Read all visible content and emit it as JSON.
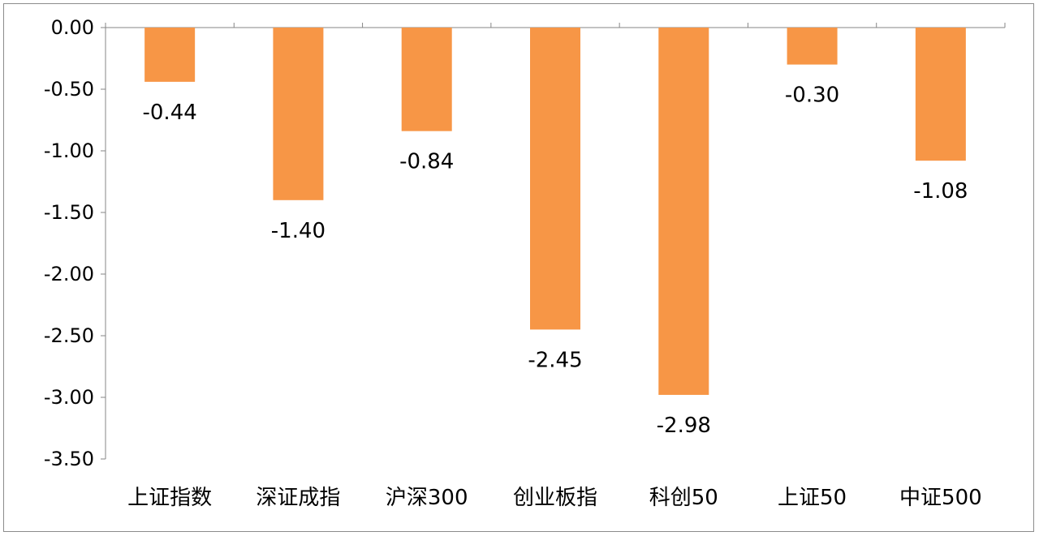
{
  "chart_data": {
    "type": "bar",
    "categories": [
      "上证指数",
      "深证成指",
      "沪深300",
      "创业板指",
      "科创50",
      "上证50",
      "中证500"
    ],
    "values": [
      -0.44,
      -1.4,
      -0.84,
      -2.45,
      -2.98,
      -0.3,
      -1.08
    ],
    "value_labels": [
      "-0.44",
      "-1.40",
      "-0.84",
      "-2.45",
      "-2.98",
      "-0.30",
      "-1.08"
    ],
    "ytick_labels": [
      "0.00",
      "-0.50",
      "-1.00",
      "-1.50",
      "-2.00",
      "-2.50",
      "-3.00",
      "-3.50"
    ],
    "ylim": [
      -3.5,
      0
    ],
    "ytick_step": 0.5,
    "grid": false,
    "legend": "none",
    "bar_color": "#F79646",
    "title": "",
    "xlabel": "",
    "ylabel": ""
  }
}
